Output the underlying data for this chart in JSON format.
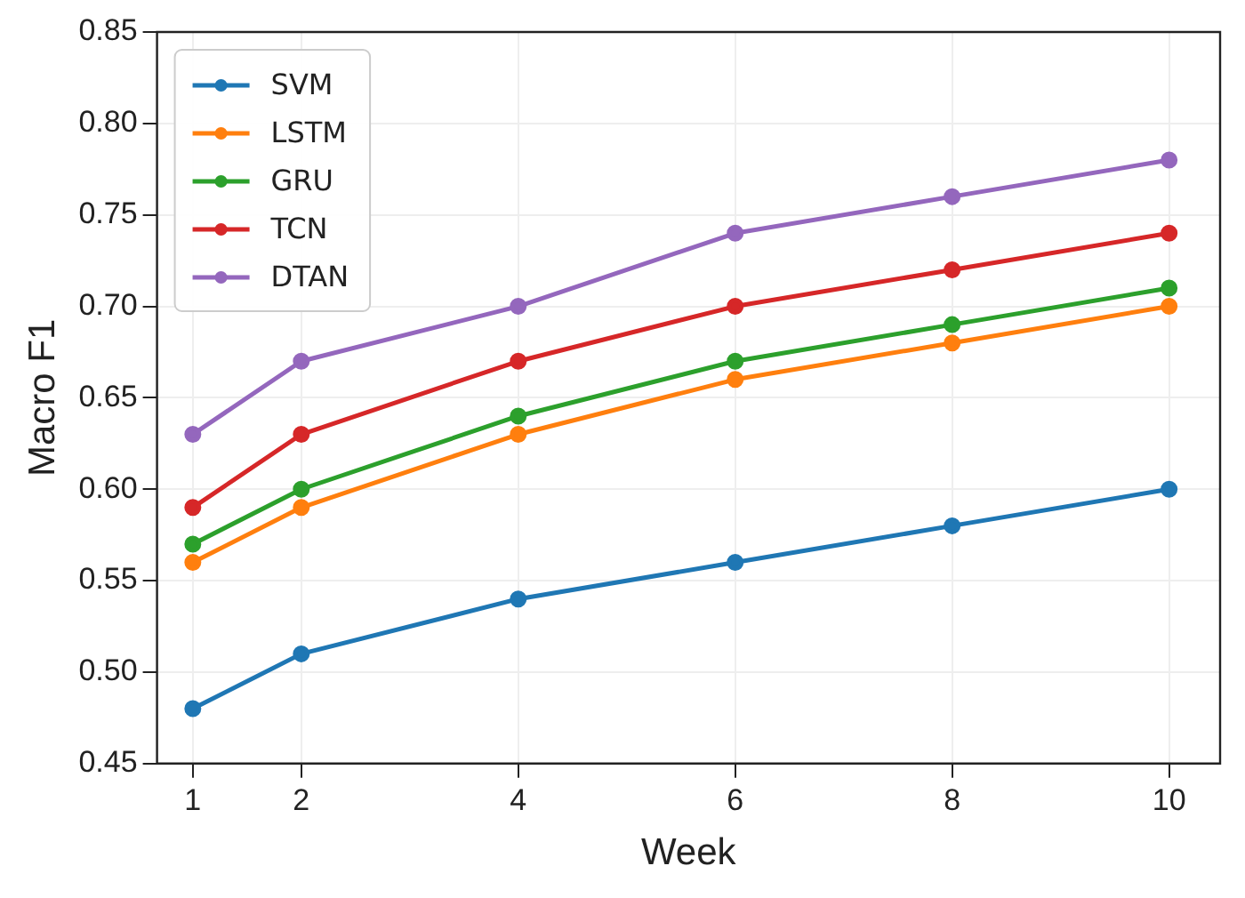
{
  "chart_data": {
    "type": "line",
    "xlabel": "Week",
    "ylabel": "Macro F1",
    "x": [
      1,
      2,
      4,
      6,
      8,
      10
    ],
    "series": [
      {
        "name": "SVM",
        "color": "#1f77b4",
        "values": [
          0.48,
          0.51,
          0.54,
          0.56,
          0.58,
          0.6
        ]
      },
      {
        "name": "LSTM",
        "color": "#ff7f0e",
        "values": [
          0.56,
          0.59,
          0.63,
          0.66,
          0.68,
          0.7
        ]
      },
      {
        "name": "GRU",
        "color": "#2ca02c",
        "values": [
          0.57,
          0.6,
          0.64,
          0.67,
          0.69,
          0.71
        ]
      },
      {
        "name": "TCN",
        "color": "#d62728",
        "values": [
          0.59,
          0.63,
          0.67,
          0.7,
          0.72,
          0.74
        ]
      },
      {
        "name": "DTAN",
        "color": "#9467bd",
        "values": [
          0.63,
          0.67,
          0.7,
          0.74,
          0.76,
          0.78
        ]
      }
    ],
    "xlim": [
      0.67,
      10.47
    ],
    "xticks": [
      1,
      2,
      4,
      6,
      8,
      10
    ],
    "ylim": [
      0.45,
      0.85
    ],
    "yticks": [
      {
        "value": 0.45,
        "label": "0.45"
      },
      {
        "value": 0.5,
        "label": "0.50"
      },
      {
        "value": 0.55,
        "label": "0.55"
      },
      {
        "value": 0.6,
        "label": "0.60"
      },
      {
        "value": 0.65,
        "label": "0.65"
      },
      {
        "value": 0.7,
        "label": "0.70"
      },
      {
        "value": 0.75,
        "label": "0.75"
      },
      {
        "value": 0.8,
        "label": "0.80"
      },
      {
        "value": 0.85,
        "label": "0.85"
      }
    ],
    "grid": true,
    "legend": "top left",
    "marker": "circle",
    "line_style": "solid"
  }
}
